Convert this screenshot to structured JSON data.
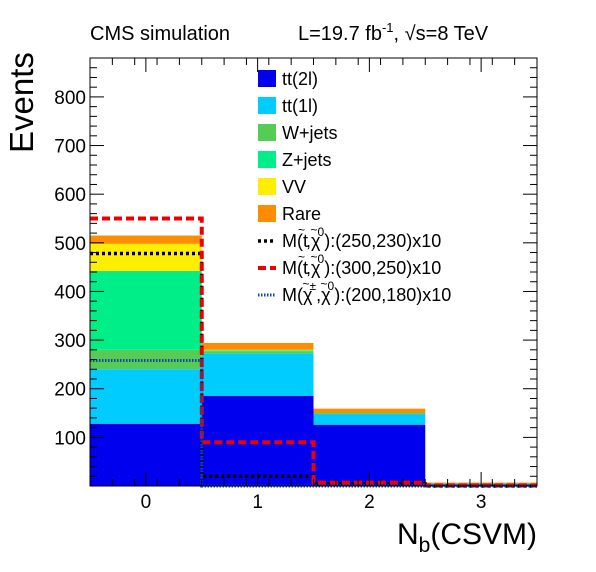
{
  "header": {
    "left": "CMS simulation",
    "lumi_prefix": "L=19.7 fb",
    "lumi_sup": "-1",
    "lumi_mid": ", ",
    "sqrt": "√",
    "energy": "s=8 TeV"
  },
  "chart_data": {
    "type": "bar",
    "stacked": true,
    "histogram": true,
    "x_edges": [
      -0.5,
      0.5,
      1.5,
      2.5,
      3.5
    ],
    "categories": [
      "0",
      "1",
      "2",
      "3"
    ],
    "xlim": [
      -0.5,
      3.5
    ],
    "ylim": [
      0,
      880
    ],
    "x_ticks": [
      0,
      1,
      2,
      3
    ],
    "y_ticks": [
      100,
      200,
      300,
      400,
      500,
      600,
      700,
      800
    ],
    "xlabel_main": "N",
    "xlabel_sub": "b",
    "xlabel_rest": "(CSVM)",
    "ylabel": "Events",
    "grid": false,
    "legend_position": "top-center",
    "series": [
      {
        "name": "tt(2l)",
        "color": "#0000ee",
        "values": [
          128,
          185,
          126,
          3
        ]
      },
      {
        "name": "tt(1l)",
        "color": "#00ccff",
        "values": [
          112,
          87,
          22,
          2
        ]
      },
      {
        "name": "W+jets",
        "color": "#55cc55",
        "values": [
          40,
          4,
          1,
          0
        ]
      },
      {
        "name": "Z+jets",
        "color": "#00ee88",
        "values": [
          162,
          3,
          1,
          0
        ]
      },
      {
        "name": "VV",
        "color": "#ffee00",
        "values": [
          56,
          1,
          0,
          0
        ]
      },
      {
        "name": "Rare",
        "color": "#ff8c00",
        "values": [
          17,
          14,
          9,
          2
        ]
      }
    ],
    "signals": [
      {
        "label_pre": "M(",
        "label_p1": "t",
        "label_p1_accent": "~",
        "label_sep": ",",
        "label_p2": "χ",
        "label_p2_accent": "~",
        "label_p2_sup": "0",
        "label_post": "):(250,230)x10",
        "color": "#000000",
        "style": "dotted",
        "values": [
          478,
          20,
          4,
          0
        ]
      },
      {
        "label_pre": "M(",
        "label_p1": "t",
        "label_p1_accent": "~",
        "label_sep": ",",
        "label_p2": "χ",
        "label_p2_accent": "~",
        "label_p2_sup": "0",
        "label_post": "):(300,250)x10",
        "color": "#ee0000",
        "style": "dashed",
        "values": [
          550,
          90,
          7,
          1
        ]
      },
      {
        "label_pre": "M(",
        "label_p1": "χ",
        "label_p1_accent": "~",
        "label_p1_sup": "±",
        "label_sep": ",",
        "label_p2": "χ",
        "label_p2_accent": "~",
        "label_p2_sup": "0",
        "label_post": "):(200,180)x10",
        "color": "#1144aa",
        "style": "dotted-fine",
        "values": [
          258,
          0,
          0,
          0
        ]
      }
    ]
  }
}
